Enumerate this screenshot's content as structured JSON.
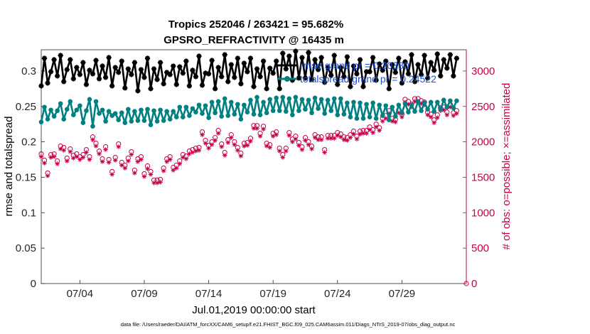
{
  "chart_data": {
    "type": "line",
    "title_line1": "Tropics 252046 / 263421 = 95.682%",
    "title_line2": "GPSRO_REFRACTIVITY @ 16435 m",
    "xlabel": "Jul.01,2019 00:00:00 start",
    "ylabel_left": "rmse and totalspread",
    "ylabel_right": "# of obs: o=possible; ×=assimilated",
    "xlim": [
      1,
      34
    ],
    "ylim_left": [
      0,
      0.33
    ],
    "ylim_right": [
      0,
      3300
    ],
    "x_tick_values": [
      4,
      9,
      14,
      19,
      24,
      29
    ],
    "x_tick_labels": [
      "07/04",
      "07/09",
      "07/14",
      "07/19",
      "07/24",
      "07/29"
    ],
    "y_tick_labels_left": [
      "0",
      "0.05",
      "0.1",
      "0.15",
      "0.2",
      "0.25",
      "0.3"
    ],
    "y_tick_labels_right": [
      "0",
      "500",
      "1000",
      "1500",
      "2000",
      "2500",
      "3000"
    ],
    "legend": [
      {
        "name": "rmse grand pr = 0.30380",
        "color": "#000000"
      },
      {
        "name": "totalspread grand pr = 0.24522",
        "color": "#008080"
      }
    ],
    "footnote": "data file: /Users/raeder/DAI/ATM_forcXX/CAM6_setup/f.e21.FHIST_BGC.f09_025.CAM6assim.011/Diags_NTrS_2019-07/obs_diag_output.nc",
    "series": [
      {
        "name": "rmse",
        "color": "#000000",
        "axis": "left",
        "values": [
          0.279,
          0.318,
          0.283,
          0.299,
          0.316,
          0.293,
          0.322,
          0.285,
          0.302,
          0.316,
          0.289,
          0.305,
          0.295,
          0.312,
          0.281,
          0.301,
          0.296,
          0.315,
          0.289,
          0.307,
          0.291,
          0.319,
          0.279,
          0.305,
          0.298,
          0.314,
          0.276,
          0.303,
          0.295,
          0.312,
          0.272,
          0.302,
          0.291,
          0.318,
          0.275,
          0.303,
          0.288,
          0.312,
          0.282,
          0.298,
          0.295,
          0.307,
          0.281,
          0.306,
          0.297,
          0.314,
          0.279,
          0.301,
          0.292,
          0.321,
          0.28,
          0.297,
          0.296,
          0.315,
          0.275,
          0.305,
          0.292,
          0.323,
          0.285,
          0.309,
          0.291,
          0.318,
          0.282,
          0.311,
          0.299,
          0.318,
          0.278,
          0.303,
          0.292,
          0.314,
          0.275,
          0.304,
          0.297,
          0.314,
          0.275,
          0.325,
          0.303,
          0.321,
          0.287,
          0.328,
          0.29,
          0.319,
          0.29,
          0.326,
          0.288,
          0.316,
          0.302,
          0.319,
          0.284,
          0.305,
          0.294,
          0.322,
          0.281,
          0.305,
          0.292,
          0.32,
          0.278,
          0.307,
          0.296,
          0.316,
          0.278,
          0.299,
          0.299,
          0.319,
          0.287,
          0.31,
          0.301,
          0.314,
          0.275,
          0.309,
          0.298,
          0.318,
          0.283,
          0.313,
          0.296,
          0.323,
          0.285,
          0.309,
          0.295,
          0.322,
          0.29,
          0.312,
          0.301,
          0.324,
          0.293,
          0.316,
          0.304,
          0.323,
          0.293,
          0.318
        ]
      },
      {
        "name": "totalspread",
        "color": "#008080",
        "axis": "left",
        "values": [
          0.228,
          0.249,
          0.232,
          0.245,
          0.236,
          0.244,
          0.254,
          0.232,
          0.246,
          0.257,
          0.238,
          0.245,
          0.251,
          0.227,
          0.244,
          0.26,
          0.222,
          0.257,
          0.24,
          0.245,
          0.229,
          0.243,
          0.237,
          0.24,
          0.231,
          0.241,
          0.227,
          0.246,
          0.229,
          0.243,
          0.23,
          0.245,
          0.23,
          0.246,
          0.224,
          0.244,
          0.229,
          0.245,
          0.23,
          0.243,
          0.232,
          0.243,
          0.235,
          0.249,
          0.235,
          0.249,
          0.237,
          0.247,
          0.242,
          0.252,
          0.24,
          0.251,
          0.234,
          0.256,
          0.241,
          0.257,
          0.236,
          0.261,
          0.237,
          0.256,
          0.239,
          0.253,
          0.232,
          0.252,
          0.242,
          0.259,
          0.239,
          0.263,
          0.238,
          0.256,
          0.241,
          0.26,
          0.244,
          0.262,
          0.244,
          0.263,
          0.243,
          0.261,
          0.238,
          0.263,
          0.244,
          0.26,
          0.246,
          0.259,
          0.241,
          0.262,
          0.247,
          0.26,
          0.24,
          0.259,
          0.244,
          0.261,
          0.238,
          0.261,
          0.239,
          0.255,
          0.235,
          0.256,
          0.233,
          0.255,
          0.233,
          0.253,
          0.235,
          0.255,
          0.233,
          0.252,
          0.237,
          0.251,
          0.231,
          0.249,
          0.236,
          0.252,
          0.241,
          0.254,
          0.242,
          0.252,
          0.243,
          0.257,
          0.244,
          0.255,
          0.246,
          0.256,
          0.243,
          0.256,
          0.246,
          0.259,
          0.249,
          0.258,
          0.248,
          0.258
        ]
      },
      {
        "name": "obs possible",
        "color": "#c8004b",
        "axis": "right",
        "marker": "circle",
        "values": [
          1830,
          1740,
          1560,
          1820,
          1830,
          1730,
          1940,
          1920,
          1770,
          1900,
          1810,
          1830,
          1790,
          1820,
          1890,
          1790,
          2070,
          1980,
          1870,
          1760,
          1930,
          1750,
          1580,
          1780,
          1970,
          1710,
          1670,
          1770,
          1860,
          1600,
          1760,
          1790,
          1550,
          1660,
          1580,
          1460,
          1460,
          1470,
          1630,
          1760,
          1790,
          1640,
          1670,
          1730,
          1820,
          1800,
          1870,
          1890,
          1910,
          1920,
          2140,
          2020,
          1950,
          2000,
          2060,
          2160,
          1970,
          1850,
          2030,
          2100,
          2000,
          1920,
          1840,
          1980,
          1990,
          2050,
          2230,
          2230,
          2120,
          2220,
          1980,
          1960,
          2120,
          2140,
          1910,
          1820,
          1910,
          2130,
          2040,
          2080,
          1990,
          1930,
          2060,
          2000,
          1940,
          2100,
          2070,
          2070,
          1890,
          2090,
          2090,
          2090,
          2130,
          2110,
          2070,
          2060,
          2100,
          2150,
          2080,
          2150,
          2160,
          2160,
          2210,
          2170,
          2250,
          2200,
          2330,
          2370,
          2440,
          2330,
          2320,
          2450,
          2390,
          2600,
          2570,
          2530,
          2610,
          2610,
          2580,
          2560,
          2420,
          2390,
          2310,
          2380,
          2480,
          2490,
          2420,
          2530,
          2410,
          2440
        ]
      },
      {
        "name": "obs assimilated",
        "color": "#c8004b",
        "axis": "right",
        "marker": "asterisk",
        "values": [
          1790,
          1700,
          1520,
          1780,
          1790,
          1690,
          1900,
          1880,
          1730,
          1860,
          1770,
          1790,
          1750,
          1780,
          1850,
          1750,
          2030,
          1940,
          1830,
          1720,
          1890,
          1710,
          1540,
          1740,
          1930,
          1670,
          1630,
          1730,
          1820,
          1560,
          1720,
          1750,
          1510,
          1620,
          1540,
          1420,
          1420,
          1430,
          1590,
          1720,
          1750,
          1600,
          1630,
          1690,
          1780,
          1760,
          1830,
          1850,
          1870,
          1880,
          2100,
          1980,
          1910,
          1960,
          2020,
          2120,
          1930,
          1810,
          1990,
          2060,
          1960,
          1880,
          1800,
          1940,
          1950,
          2010,
          2190,
          2190,
          2080,
          2180,
          1940,
          1920,
          2080,
          2100,
          1870,
          1780,
          1870,
          2090,
          2000,
          2040,
          1950,
          1890,
          2020,
          1960,
          1900,
          2060,
          2030,
          2030,
          1850,
          2050,
          2050,
          2050,
          2090,
          2070,
          2030,
          2020,
          2060,
          2110,
          2040,
          2110,
          2120,
          2120,
          2170,
          2130,
          2210,
          2160,
          2290,
          2330,
          2400,
          2290,
          2280,
          2410,
          2350,
          2560,
          2530,
          2490,
          2570,
          2570,
          2540,
          2520,
          2380,
          2350,
          2270,
          2340,
          2440,
          2450,
          2380,
          2490,
          2370,
          2400
        ]
      }
    ]
  }
}
